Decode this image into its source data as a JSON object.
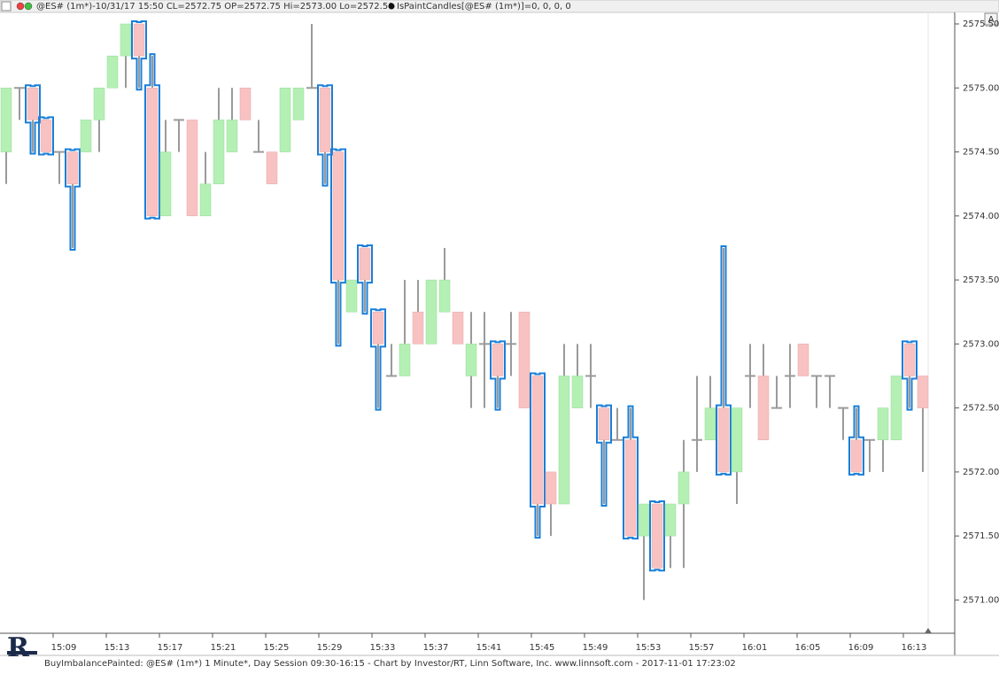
{
  "chart_data": {
    "type": "candlestick",
    "header": "@ES# (1m*)-10/31/17 15:50 CL=2572.75 OP=2572.75 Hi=2573.00 Lo=2572.50",
    "indicator": "IsPaintCandles[@ES# (1m*)]=0, 0, 0, 0",
    "footer": "BuyImbalancePainted: @ES# (1m*) 1 Minute*, Day Session 09:30-16:15 - Chart by Investor/RT, Linn Software, Inc. www.linnsoft.com - 2017-11-01 17:23:02",
    "button": "A",
    "categories": [
      null,
      null,
      null,
      null,
      "15:09",
      null,
      null,
      null,
      "15:13",
      null,
      null,
      null,
      "15:17",
      null,
      null,
      null,
      "15:21",
      null,
      null,
      null,
      "15:25",
      null,
      null,
      null,
      "15:29",
      null,
      null,
      null,
      "15:33",
      null,
      null,
      null,
      "15:37",
      null,
      null,
      null,
      "15:41",
      null,
      null,
      null,
      "15:45",
      null,
      null,
      null,
      "15:49",
      null,
      null,
      null,
      "15:53",
      null,
      null,
      null,
      "15:57",
      null,
      null,
      null,
      "16:01",
      null,
      null,
      null,
      "16:05",
      null,
      null,
      null,
      "16:09",
      null,
      null,
      null,
      "16:13",
      null
    ],
    "open": [
      2574.5,
      2575,
      2575,
      2574.75,
      2574.5,
      2574.5,
      2574.5,
      2574.75,
      2575,
      2575.25,
      2575.5,
      2575,
      2574,
      2574.75,
      2574.75,
      2574,
      2574.25,
      2574.5,
      2575,
      2574.5,
      2574.5,
      2574.5,
      2574.75,
      2575,
      2575,
      2574.5,
      2573.25,
      2573.75,
      2573.25,
      2572.75,
      2572.75,
      2573.25,
      2573,
      2573.25,
      2573.25,
      2572.75,
      2573,
      2573,
      2573,
      2573.25,
      2572.75,
      2572,
      2571.75,
      2572.5,
      2572.75,
      2572.5,
      2572.25,
      2572.25,
      2571.5,
      2571.75,
      2571.5,
      2571.75,
      2572.25,
      2572.25,
      2572.5,
      2572,
      2572.75,
      2572.75,
      2572.5,
      2572.75,
      2573,
      2572.75,
      2572.75,
      2572.5,
      2572.25,
      2572.25,
      2572.25,
      2572.25,
      2573,
      2572.75
    ],
    "high": [
      2575,
      2575,
      2575,
      2574.75,
      2574.5,
      2574.5,
      2574.75,
      2575,
      2575.25,
      2575.5,
      2575.5,
      2575.25,
      2574.75,
      2574.75,
      2574.75,
      2574.5,
      2575,
      2575,
      2575,
      2574.75,
      2574.5,
      2575,
      2575,
      2575.5,
      2575,
      2574.5,
      2573.5,
      2573.75,
      2573.25,
      2573,
      2573.5,
      2573.5,
      2573.5,
      2573.75,
      2573.25,
      2573.25,
      2573.25,
      2573,
      2573.25,
      2573.25,
      2572.75,
      2572,
      2573,
      2573,
      2573,
      2572.5,
      2572.5,
      2572.5,
      2571.75,
      2571.75,
      2571.75,
      2572.25,
      2572.75,
      2572.75,
      2573.75,
      2572.5,
      2573,
      2573,
      2572.75,
      2573,
      2573,
      2572.75,
      2572.75,
      2572.5,
      2572.5,
      2572.25,
      2572.5,
      2572.75,
      2573,
      2572.75
    ],
    "low": [
      2574.25,
      2574.75,
      2574.5,
      2574.5,
      2574.25,
      2573.75,
      2574.5,
      2574.5,
      2575,
      2575,
      2575,
      2574,
      2574,
      2574.5,
      2574,
      2574,
      2574.25,
      2574.5,
      2574.75,
      2574.5,
      2574.25,
      2574.5,
      2574.75,
      2575,
      2574.25,
      2573,
      2573.25,
      2573.25,
      2572.5,
      2572.75,
      2572.75,
      2573,
      2573,
      2573.25,
      2573,
      2572.5,
      2572.5,
      2572.5,
      2572.75,
      2572.5,
      2571.5,
      2571.5,
      2571.75,
      2572.5,
      2572.5,
      2571.75,
      2572.25,
      2571.5,
      2571,
      2571.25,
      2571.25,
      2571.25,
      2572,
      2572.25,
      2572,
      2571.75,
      2572.5,
      2572.25,
      2572.5,
      2572.5,
      2572.75,
      2572.5,
      2572.5,
      2572.25,
      2572,
      2572,
      2572,
      2572.25,
      2572.5,
      2572
    ],
    "close": [
      2575,
      2575,
      2574.75,
      2574.5,
      2574.5,
      2574.25,
      2574.75,
      2575,
      2575.25,
      2575.5,
      2575.25,
      2574,
      2574.5,
      2574.75,
      2574,
      2574.25,
      2574.75,
      2574.75,
      2574.75,
      2574.5,
      2574.25,
      2575,
      2575,
      2575,
      2574.5,
      2573.5,
      2573.5,
      2573.5,
      2573,
      2572.75,
      2573,
      2573,
      2573.5,
      2573.5,
      2573,
      2573,
      2573,
      2572.75,
      2573,
      2572.5,
      2571.75,
      2571.75,
      2572.75,
      2572.75,
      2572.75,
      2572.25,
      2572.25,
      2571.5,
      2571.75,
      2571.25,
      2571.75,
      2572,
      2572.25,
      2572.5,
      2572,
      2572.5,
      2572.75,
      2572.25,
      2572.5,
      2572.75,
      2572.75,
      2572.75,
      2572.75,
      2572.5,
      2572,
      2572.25,
      2572.5,
      2572.75,
      2572.75,
      2572.5
    ],
    "painted": [
      false,
      false,
      true,
      true,
      false,
      true,
      false,
      false,
      false,
      false,
      true,
      true,
      false,
      false,
      false,
      false,
      false,
      false,
      false,
      false,
      false,
      false,
      false,
      false,
      true,
      true,
      false,
      true,
      true,
      false,
      false,
      false,
      false,
      false,
      false,
      false,
      false,
      true,
      false,
      false,
      true,
      false,
      false,
      false,
      false,
      true,
      false,
      true,
      false,
      true,
      false,
      false,
      false,
      false,
      true,
      false,
      false,
      false,
      false,
      false,
      false,
      false,
      false,
      false,
      true,
      false,
      false,
      false,
      true,
      false
    ],
    "up_color": "#b4f0b4",
    "down_color": "#f8c2c2",
    "wick_color": "#9a9a9a",
    "paint_color": "#1a7fd8",
    "ylim": [
      2570.74,
      2575.59
    ],
    "yticks": [
      {
        "value": 2571,
        "label": "2571.00"
      },
      {
        "value": 2571.5,
        "label": "2571.50"
      },
      {
        "value": 2572,
        "label": "2572.00"
      },
      {
        "value": 2572.5,
        "label": "2572.50"
      },
      {
        "value": 2573,
        "label": "2573.00"
      },
      {
        "value": 2573.5,
        "label": "2573.50"
      },
      {
        "value": 2574,
        "label": "2574.00"
      },
      {
        "value": 2574.5,
        "label": "2574.50"
      },
      {
        "value": 2575,
        "label": "2575.00"
      },
      {
        "value": 2575.5,
        "label": "2575.50"
      }
    ]
  }
}
